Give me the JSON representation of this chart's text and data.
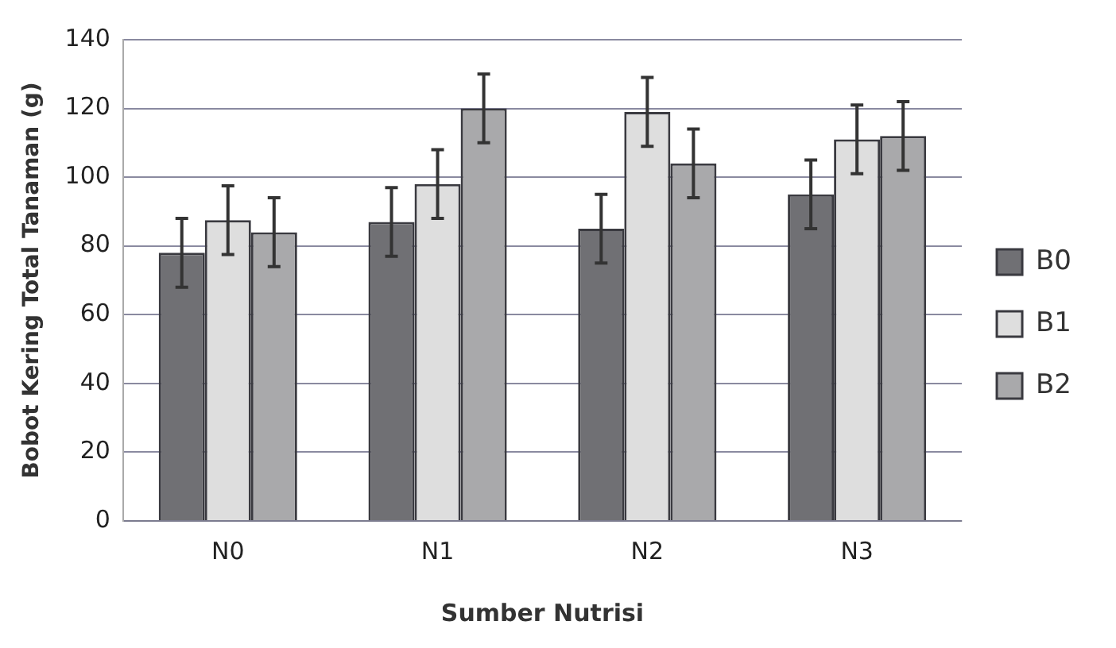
{
  "chart_data": {
    "type": "bar",
    "xlabel": "Sumber Nutrisi",
    "ylabel": "Bobot Kering Total Tanaman (g)",
    "categories": [
      "N0",
      "N1",
      "N2",
      "N3"
    ],
    "series": [
      {
        "name": "B0",
        "color": "#707074",
        "values": [
          78,
          87,
          85,
          95
        ],
        "errors": [
          10,
          10,
          10,
          10
        ]
      },
      {
        "name": "B1",
        "color": "#dedede",
        "values": [
          87.5,
          98,
          119,
          111
        ],
        "errors": [
          10,
          10,
          10,
          10
        ]
      },
      {
        "name": "B2",
        "color": "#a9a9ab",
        "values": [
          84,
          120,
          104,
          112
        ],
        "errors": [
          10,
          10,
          10,
          10
        ]
      }
    ],
    "ylim": [
      0,
      140
    ],
    "yticks": [
      0,
      20,
      40,
      60,
      80,
      100,
      120,
      140
    ],
    "grid": "y",
    "legend": "right"
  }
}
